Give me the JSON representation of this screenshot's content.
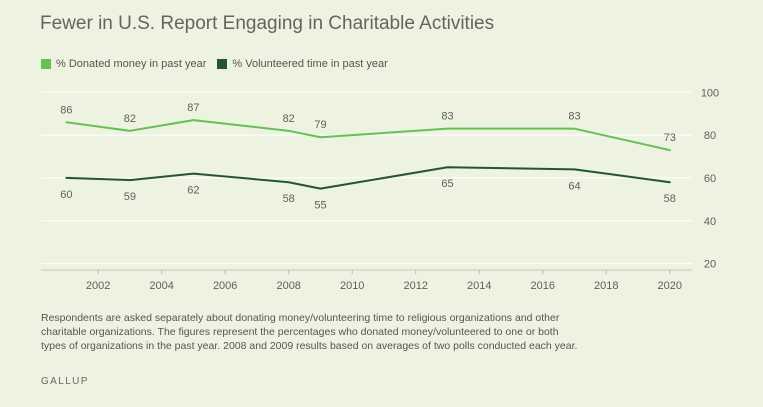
{
  "colors": {
    "background": "#eef2e0",
    "donated": "#66c055",
    "volunteered": "#245530",
    "grid": "#ffffff",
    "text": "#5f5f5f"
  },
  "chart_data": {
    "type": "line",
    "title": "Fewer in U.S. Report Engaging in Charitable Activities",
    "xlabel": "",
    "ylabel": "",
    "xlim": [
      2000.2,
      2020.7
    ],
    "ylim": [
      17,
      102
    ],
    "x_ticks": [
      2002,
      2004,
      2006,
      2008,
      2010,
      2012,
      2014,
      2016,
      2018,
      2020
    ],
    "y_ticks": [
      20,
      40,
      60,
      80,
      100
    ],
    "grid": true,
    "y_axis_position": "right",
    "legend_position": "top-left",
    "series": [
      {
        "name": "% Donated money in past year",
        "color": "#66c055",
        "x": [
          2001,
          2003,
          2005,
          2008,
          2009,
          2013,
          2017,
          2020
        ],
        "y": [
          86,
          82,
          87,
          82,
          79,
          83,
          83,
          73
        ],
        "labels": [
          "86",
          "82",
          "87",
          "82",
          "79",
          "83",
          "83",
          "73"
        ]
      },
      {
        "name": "% Volunteered time in past year",
        "color": "#245530",
        "x": [
          2001,
          2003,
          2005,
          2008,
          2009,
          2013,
          2017,
          2020
        ],
        "y": [
          60,
          59,
          62,
          58,
          55,
          65,
          64,
          58
        ],
        "labels": [
          "60",
          "59",
          "62",
          "58",
          "55",
          "65",
          "64",
          "58"
        ]
      }
    ]
  },
  "footnote": "Respondents are asked separately about donating money/volunteering time to religious organizations and other charitable organizations. The figures represent the percentages who donated money/volunteered to one or both types of organizations in the past year. 2008 and 2009 results based on averages of two polls conducted each year.",
  "brand": "GALLUP"
}
